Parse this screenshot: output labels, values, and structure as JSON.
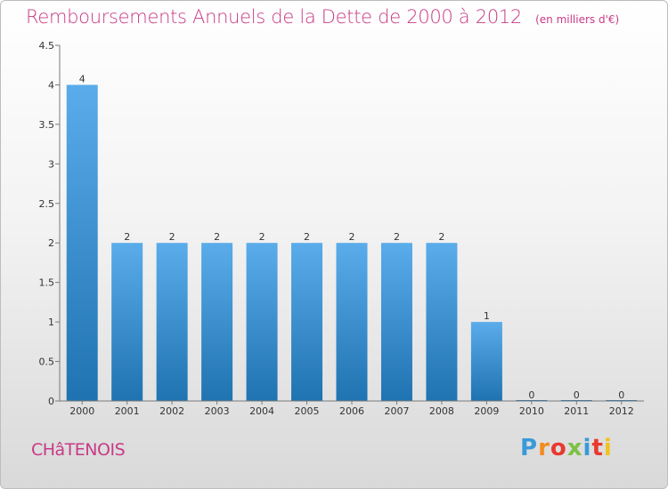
{
  "header": {
    "title": "Remboursements Annuels de la Dette de 2000 à 2012",
    "unit": "(en milliers d'€)"
  },
  "footer": {
    "commune": "CHâTENOIS",
    "logo": {
      "letters": [
        "P",
        "r",
        "o",
        "x",
        "i",
        "t",
        "i"
      ],
      "colors": [
        "#3a9ad9",
        "#f28c1e",
        "#e8392f",
        "#7cc143",
        "#3a9ad9",
        "#e8392f",
        "#f2c21e"
      ]
    }
  },
  "colors": {
    "title": "#c83a86",
    "bar_dark": "#1f73b0",
    "bar_light": "#5aacea",
    "axis": "#7a7a7a",
    "text": "#333333"
  },
  "chart_data": {
    "type": "bar",
    "categories": [
      "2000",
      "2001",
      "2002",
      "2003",
      "2004",
      "2005",
      "2006",
      "2007",
      "2008",
      "2009",
      "2010",
      "2011",
      "2012"
    ],
    "values": [
      4,
      2,
      2,
      2,
      2,
      2,
      2,
      2,
      2,
      1,
      0,
      0,
      0
    ],
    "data_labels": [
      "4",
      "2",
      "2",
      "2",
      "2",
      "2",
      "2",
      "2",
      "2",
      "1",
      "0",
      "0",
      "0"
    ],
    "ylim": [
      0,
      4.5
    ],
    "yticks": [
      0,
      0.5,
      1,
      1.5,
      2,
      2.5,
      3,
      3.5,
      4,
      4.5
    ],
    "ytick_labels": [
      "0",
      "0.5",
      "1",
      "1.5",
      "2",
      "2.5",
      "3",
      "3.5",
      "4",
      "4.5"
    ],
    "grid": false,
    "legend": "none"
  }
}
